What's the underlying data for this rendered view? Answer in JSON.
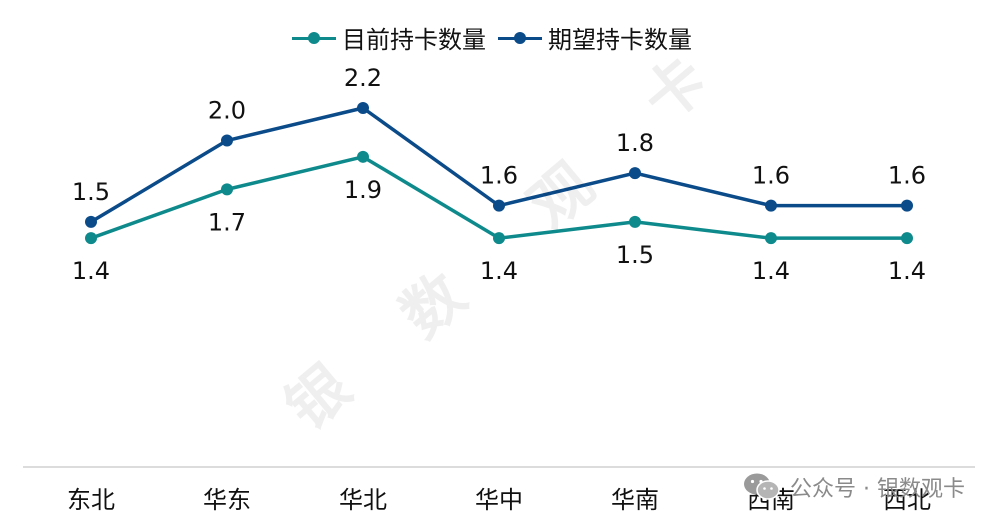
{
  "chart_data": {
    "type": "line",
    "categories": [
      "东北",
      "华东",
      "华北",
      "华中",
      "华南",
      "西南",
      "西北"
    ],
    "series": [
      {
        "name": "目前持卡数量",
        "values": [
          1.4,
          1.7,
          1.9,
          1.4,
          1.5,
          1.4,
          1.4
        ],
        "color": "#0e8a8c",
        "label_pos": "below"
      },
      {
        "name": "期望持卡数量",
        "values": [
          1.5,
          2.0,
          2.2,
          1.6,
          1.8,
          1.6,
          1.6
        ],
        "color": "#0b4b8a",
        "label_pos": "above"
      }
    ],
    "ylim": [
      0.0,
      2.5
    ],
    "grid": false,
    "legend": "top-center"
  },
  "watermark": {
    "chars": [
      "银",
      "数",
      "观",
      "卡"
    ]
  },
  "footer": {
    "icon": "wechat-icon",
    "text": "公众号 · 银数观卡"
  }
}
